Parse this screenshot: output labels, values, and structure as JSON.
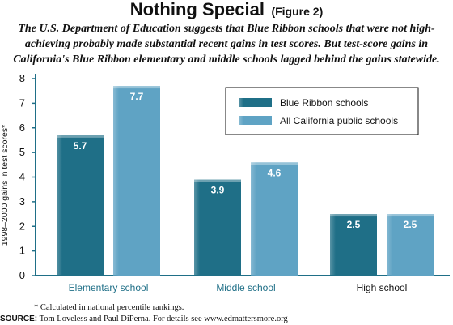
{
  "header": {
    "title": "Nothing Special",
    "figure_label": "(Figure 2)",
    "subtitle": "The U.S. Department of Education suggests that Blue Ribbon schools that were not high-achieving probably made substantial recent gains in test scores. But test-score gains in California's Blue Ribbon elementary and middle schools lagged behind the gains statewide."
  },
  "colors": {
    "blue_ribbon": "#1f6f87",
    "all_california": "#5fa3c4",
    "axis": "#1f6f87",
    "category_label": "#1f6f87"
  },
  "chart_data": {
    "type": "bar",
    "categories": [
      "Elementary school",
      "Middle school",
      "High school"
    ],
    "series": [
      {
        "name": "Blue Ribbon schools",
        "values": [
          5.7,
          3.9,
          2.5
        ]
      },
      {
        "name": "All California public schools",
        "values": [
          7.7,
          4.6,
          2.5
        ]
      }
    ],
    "data_labels": [
      [
        "5.7",
        "3.9",
        "2.5"
      ],
      [
        "7.7",
        "4.6",
        "2.5"
      ]
    ],
    "ylabel": "1998–2000 gains in test scores*",
    "xlabel": "",
    "ylim": [
      0,
      8
    ],
    "yticks": [
      "0",
      "1",
      "2",
      "3",
      "4",
      "5",
      "6",
      "7",
      "8"
    ],
    "legend_position": "top-right",
    "grid": false
  },
  "footnote": "* Calculated in national percentile rankings.",
  "source": {
    "label": "SOURCE:",
    "text": "Tom Loveless and Paul DiPerna. For details see www.edmattersmore.org"
  }
}
